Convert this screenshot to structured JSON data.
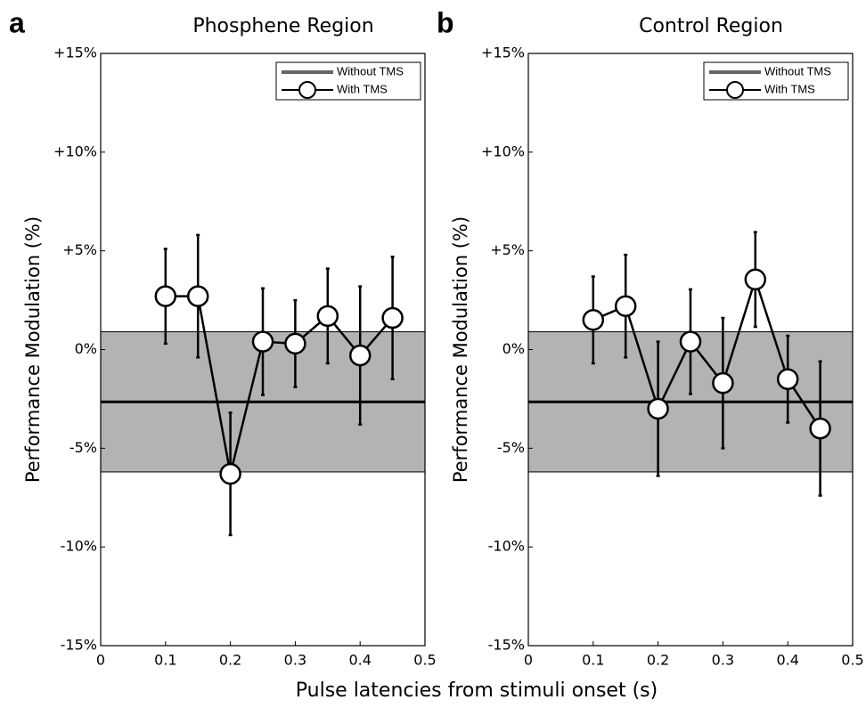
{
  "chart_data": [
    {
      "type": "line",
      "panel_label": "a",
      "title": "Phosphene Region",
      "ylabel": "Performance Modulation (%)",
      "x": [
        0.1,
        0.15,
        0.2,
        0.25,
        0.3,
        0.35,
        0.4,
        0.45
      ],
      "series": [
        {
          "name": "Without TMS",
          "color": "#000000",
          "legend_color": "#666666",
          "value": -2.65,
          "band": [
            -6.2,
            0.9
          ],
          "band_color": "#b3b3b3"
        },
        {
          "name": "With TMS",
          "color": "#000000",
          "marker_fill": "#ffffff",
          "values": [
            2.7,
            2.7,
            -6.3,
            0.4,
            0.3,
            1.7,
            -0.3,
            1.6
          ],
          "errors": [
            2.4,
            3.1,
            3.1,
            2.7,
            2.2,
            2.4,
            3.5,
            3.1
          ]
        }
      ],
      "xlim": [
        0,
        0.5
      ],
      "xticks": [
        0,
        0.1,
        0.2,
        0.3,
        0.4,
        0.5
      ],
      "ylim": [
        -15,
        15
      ],
      "yticks": [
        {
          "value": -15,
          "label": "-15%"
        },
        {
          "value": -10,
          "label": "-10%"
        },
        {
          "value": -5,
          "label": "-5%"
        },
        {
          "value": 0,
          "label": "0%"
        },
        {
          "value": 5,
          "label": "+5%"
        },
        {
          "value": 10,
          "label": "+10%"
        },
        {
          "value": 15,
          "label": "+15%"
        }
      ],
      "grid": false,
      "legend": "upper right"
    },
    {
      "type": "line",
      "panel_label": "b",
      "title": "Control Region",
      "ylabel": "Performance Modulation (%)",
      "x": [
        0.1,
        0.15,
        0.2,
        0.25,
        0.3,
        0.35,
        0.4,
        0.45
      ],
      "series": [
        {
          "name": "Without TMS",
          "color": "#000000",
          "legend_color": "#666666",
          "value": -2.65,
          "band": [
            -6.2,
            0.9
          ],
          "band_color": "#b3b3b3"
        },
        {
          "name": "With TMS",
          "color": "#000000",
          "marker_fill": "#ffffff",
          "values": [
            1.5,
            2.2,
            -3.0,
            0.4,
            -1.7,
            3.55,
            -1.5,
            -4.0
          ],
          "errors": [
            2.2,
            2.6,
            3.4,
            2.65,
            3.3,
            2.4,
            2.2,
            3.4
          ]
        }
      ],
      "xlim": [
        0,
        0.5
      ],
      "xticks": [
        0,
        0.1,
        0.2,
        0.3,
        0.4,
        0.5
      ],
      "ylim": [
        -15,
        15
      ],
      "yticks": [
        {
          "value": -15,
          "label": "-15%"
        },
        {
          "value": -10,
          "label": "-10%"
        },
        {
          "value": -5,
          "label": "-5%"
        },
        {
          "value": 0,
          "label": "0%"
        },
        {
          "value": 5,
          "label": "+5%"
        },
        {
          "value": 10,
          "label": "+10%"
        },
        {
          "value": 15,
          "label": "+15%"
        }
      ],
      "grid": false,
      "legend": "upper right"
    }
  ],
  "xlabel": "Pulse latencies from stimuli onset (s)"
}
